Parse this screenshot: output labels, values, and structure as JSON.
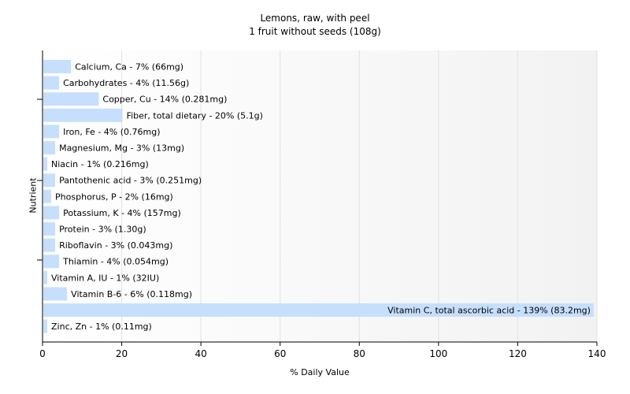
{
  "chart_data": {
    "type": "bar",
    "orientation": "horizontal",
    "title": "Lemons, raw, with peel",
    "subtitle": "1 fruit without seeds (108g)",
    "xlabel": "% Daily Value",
    "ylabel": "Nutrient",
    "xlim": [
      0,
      140
    ],
    "xticks": [
      0,
      20,
      40,
      60,
      80,
      100,
      120,
      140
    ],
    "grid": true,
    "bar_color": "#c6dffc",
    "categories": [
      "Calcium, Ca",
      "Carbohydrates",
      "Copper, Cu",
      "Fiber, total dietary",
      "Iron, Fe",
      "Magnesium, Mg",
      "Niacin",
      "Pantothenic acid",
      "Phosphorus, P",
      "Potassium, K",
      "Protein",
      "Riboflavin",
      "Thiamin",
      "Vitamin A, IU",
      "Vitamin B-6",
      "Vitamin C, total ascorbic acid",
      "Zinc, Zn"
    ],
    "values": [
      7,
      4,
      14,
      20,
      4,
      3,
      1,
      3,
      2,
      4,
      3,
      3,
      4,
      1,
      6,
      139,
      1
    ],
    "labels": [
      "Calcium, Ca - 7% (66mg)",
      "Carbohydrates - 4% (11.56g)",
      "Copper, Cu - 14% (0.281mg)",
      "Fiber, total dietary - 20% (5.1g)",
      "Iron, Fe - 4% (0.76mg)",
      "Magnesium, Mg - 3% (13mg)",
      "Niacin - 1% (0.216mg)",
      "Pantothenic acid - 3% (0.251mg)",
      "Phosphorus, P - 2% (16mg)",
      "Potassium, K - 4% (157mg)",
      "Protein - 3% (1.30g)",
      "Riboflavin - 3% (0.043mg)",
      "Thiamin - 4% (0.054mg)",
      "Vitamin A, IU - 1% (32IU)",
      "Vitamin B-6 - 6% (0.118mg)",
      "Vitamin C, total ascorbic acid - 139% (83.2mg)",
      "Zinc, Zn - 1% (0.11mg)"
    ]
  }
}
